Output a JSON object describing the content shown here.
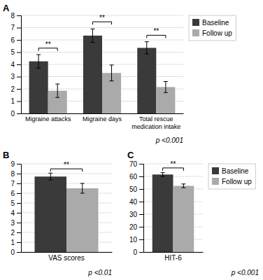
{
  "chart_data": [
    {
      "type": "bar",
      "title": "A",
      "categories": [
        "Migraine attacks",
        "Migraine days",
        "Total rescue\nmedication intake"
      ],
      "series": [
        {
          "name": "Baseline",
          "color": "#3a3a3a",
          "values": [
            4.25,
            6.35,
            5.35
          ],
          "errors": [
            0.55,
            0.55,
            0.5
          ]
        },
        {
          "name": "Follow up",
          "color": "#aaaaaa",
          "values": [
            1.85,
            3.3,
            2.15
          ],
          "errors": [
            0.55,
            0.65,
            0.45
          ]
        }
      ],
      "ylim": [
        0,
        8
      ],
      "yticks": [
        0,
        1,
        2,
        3,
        4,
        5,
        6,
        7,
        8
      ],
      "grid": true,
      "legend": "right",
      "annotations": [
        {
          "text": "**",
          "category": "Migraine attacks",
          "y": 5.1
        },
        {
          "text": "**",
          "category": "Migraine days",
          "y": 7.25
        },
        {
          "text": "**",
          "category": "Total rescue\nmedication intake",
          "y": 6.15
        },
        {
          "text": "p <0.001"
        }
      ]
    },
    {
      "type": "bar",
      "title": "B",
      "categories": [
        "VAS scores"
      ],
      "series": [
        {
          "name": "Baseline",
          "color": "#3a3a3a",
          "values": [
            7.7
          ],
          "errors": [
            0.35
          ]
        },
        {
          "name": "Follow up",
          "color": "#aaaaaa",
          "values": [
            6.5
          ],
          "errors": [
            0.5
          ]
        }
      ],
      "ylim": [
        0,
        9
      ],
      "yticks": [
        0,
        1,
        2,
        3,
        4,
        5,
        6,
        7,
        8,
        9
      ],
      "grid": true,
      "legend": false,
      "annotations": [
        {
          "text": "**",
          "category": "VAS scores",
          "y": 8.2
        },
        {
          "text": "p <0.01"
        }
      ]
    },
    {
      "type": "bar",
      "title": "C",
      "categories": [
        "HIT-6"
      ],
      "series": [
        {
          "name": "Baseline",
          "color": "#3a3a3a",
          "values": [
            61.5
          ],
          "errors": [
            1.5
          ]
        },
        {
          "name": "Follow up",
          "color": "#aaaaaa",
          "values": [
            52.5
          ],
          "errors": [
            1.5
          ]
        }
      ],
      "ylim": [
        0,
        70
      ],
      "yticks": [
        0,
        10,
        20,
        30,
        40,
        50,
        60,
        70
      ],
      "grid": true,
      "legend": "right",
      "annotations": [
        {
          "text": "**",
          "category": "HIT-6",
          "y": 64.5
        },
        {
          "text": "p <0.001"
        }
      ]
    }
  ]
}
